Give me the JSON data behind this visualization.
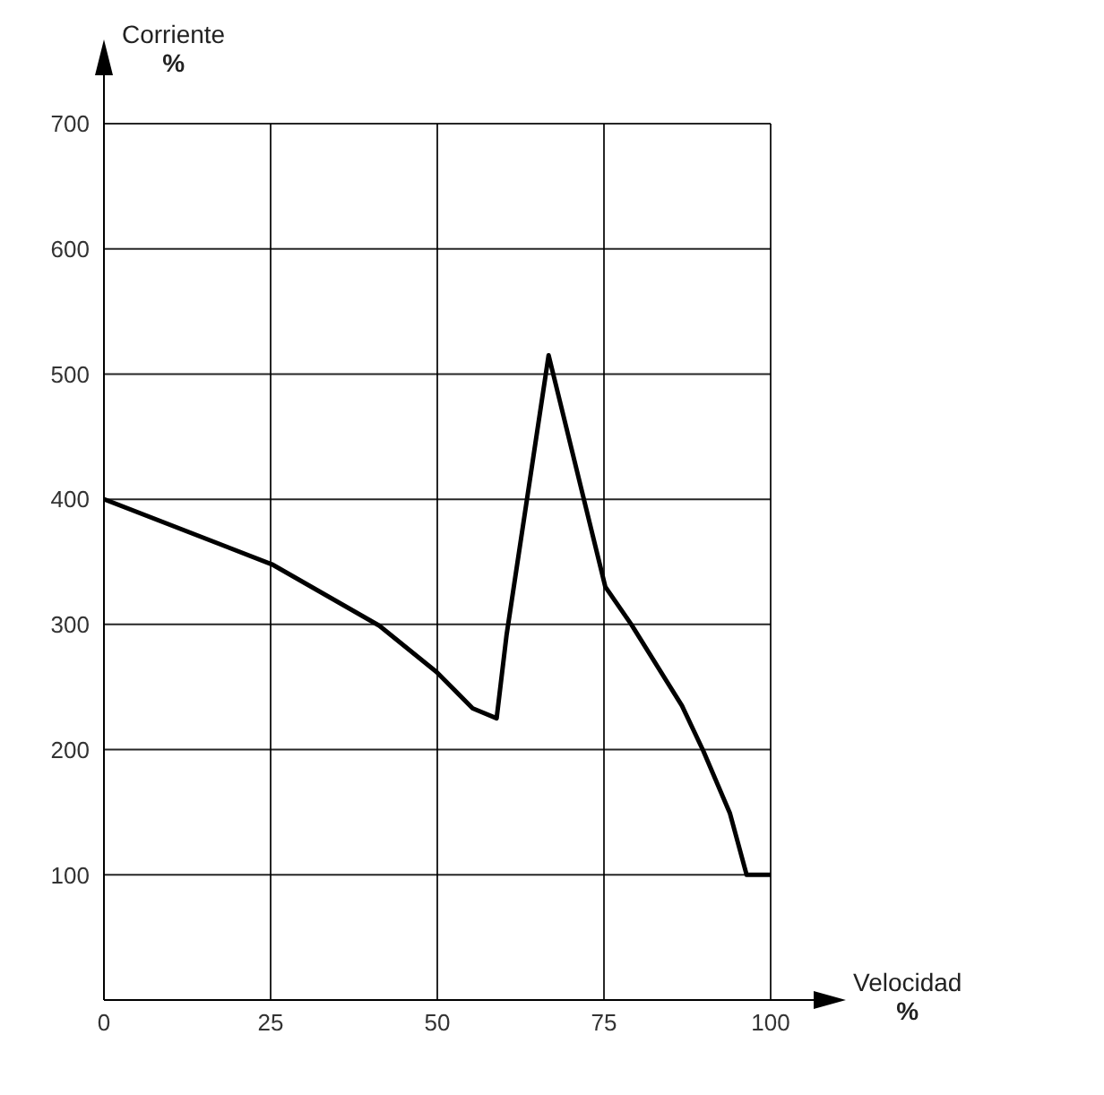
{
  "chart_data": {
    "type": "line",
    "xlabel": "Velocidad\n%",
    "ylabel": "Corriente\n%",
    "x": [
      0,
      25.2,
      41.3,
      49.9,
      55.3,
      58.9,
      60.4,
      66.7,
      75.2,
      79.1,
      86.7,
      89.9,
      93.9,
      96.4,
      100
    ],
    "series": [
      {
        "color": "#000000",
        "values": [
          400,
          348,
          299,
          262,
          233,
          225,
          292,
          515,
          330,
          300,
          235,
          199,
          149,
          100,
          100
        ]
      }
    ],
    "xlim": [
      0,
      100
    ],
    "xticks": [
      0,
      25,
      50,
      75,
      100
    ],
    "ylim": [
      0,
      700
    ],
    "yticks": [
      100,
      200,
      300,
      400,
      500,
      600,
      700
    ],
    "grid": true,
    "marker": "none",
    "line_style": "solid"
  }
}
